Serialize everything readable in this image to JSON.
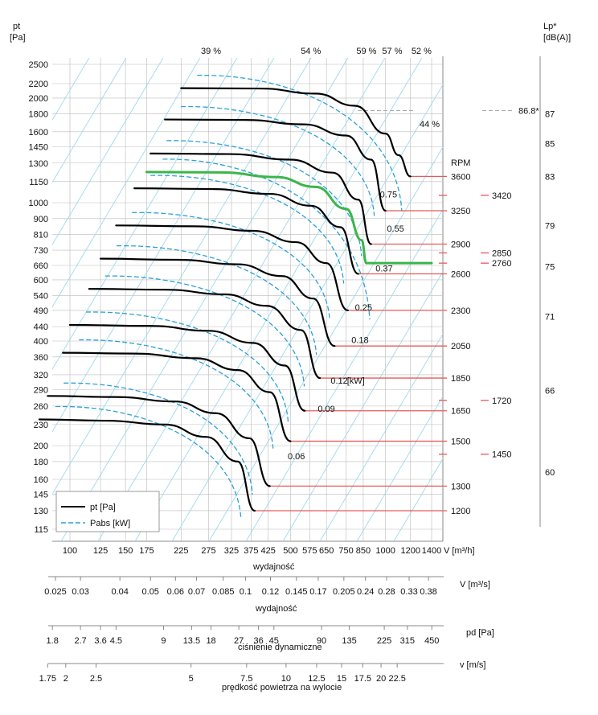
{
  "chart_data": {
    "type": "line",
    "title": "",
    "y_axis": {
      "label_line1": "pt",
      "label_line2": "[Pa]",
      "ticks": [
        115,
        130,
        145,
        160,
        180,
        200,
        230,
        260,
        290,
        320,
        360,
        400,
        440,
        490,
        540,
        600,
        660,
        730,
        810,
        900,
        1000,
        1150,
        1300,
        1450,
        1600,
        1800,
        2000,
        2200,
        2500
      ]
    },
    "x_axis": {
      "label": "wydajność",
      "unit_label": "V [m³/h]",
      "ticks": [
        100,
        125,
        150,
        175,
        225,
        275,
        325,
        375,
        425,
        500,
        575,
        650,
        750,
        850,
        1000,
        1200,
        1400
      ]
    },
    "right_axis": {
      "label_line1": "Lp*",
      "label_line2": "[dB(A)]",
      "ticks": [
        {
          "label": "87",
          "pa": 1800
        },
        {
          "label": "85",
          "pa": 1480
        },
        {
          "label": "83",
          "pa": 1190
        },
        {
          "label": "79",
          "pa": 860
        },
        {
          "label": "75",
          "pa": 655
        },
        {
          "label": "71",
          "pa": 470
        },
        {
          "label": "66",
          "pa": 288
        },
        {
          "label": "60",
          "pa": 168
        }
      ],
      "marker": {
        "label": "86.8*",
        "pa": 1840
      }
    },
    "rpm_header": "RPM",
    "rpm_main": [
      {
        "rpm": "3600",
        "pa": 1190,
        "x_end": 1200
      },
      {
        "rpm": "3250",
        "pa": 948,
        "x_end": 1000
      },
      {
        "rpm": "2900",
        "pa": 760,
        "x_end": 900
      },
      {
        "rpm": "2600",
        "pa": 624,
        "x_end": 820
      },
      {
        "rpm": "2300",
        "pa": 490,
        "x_end": 760
      },
      {
        "rpm": "2050",
        "pa": 387,
        "x_end": 690
      },
      {
        "rpm": "1850",
        "pa": 313,
        "x_end": 620
      },
      {
        "rpm": "1650",
        "pa": 252,
        "x_end": 555
      },
      {
        "rpm": "1500",
        "pa": 206,
        "x_end": 500
      },
      {
        "rpm": "1300",
        "pa": 153,
        "x_end": 430
      },
      {
        "rpm": "1200",
        "pa": 130,
        "x_end": 385
      }
    ],
    "rpm_extra": [
      {
        "rpm": "3420",
        "pa": 1050
      },
      {
        "rpm": "2850",
        "pa": 717
      },
      {
        "rpm": "2760",
        "pa": 670
      },
      {
        "rpm": "1720",
        "pa": 270
      },
      {
        "rpm": "1450",
        "pa": 189
      }
    ],
    "power_labels": [
      {
        "label": "0.75",
        "x": 960,
        "pa": 1035
      },
      {
        "label": "0.55",
        "x": 1010,
        "pa": 825
      },
      {
        "label": "0.37",
        "x": 930,
        "pa": 635
      },
      {
        "label": "0.25",
        "x": 800,
        "pa": 490
      },
      {
        "label": "0.18",
        "x": 780,
        "pa": 395
      },
      {
        "label": "0.12",
        "x": 670,
        "pa": 302
      },
      {
        "label": "[kW]",
        "x": 755,
        "pa": 302
      },
      {
        "label": "0.09",
        "x": 610,
        "pa": 250
      },
      {
        "label": "0.06",
        "x": 490,
        "pa": 183
      }
    ],
    "efficiency_labels": [
      {
        "label": "39 %",
        "x": 280,
        "pa": 2680
      },
      {
        "label": "54 %",
        "x": 580,
        "pa": 2680
      },
      {
        "label": "59 %",
        "x": 870,
        "pa": 2680
      },
      {
        "label": "57 %",
        "x": 1050,
        "pa": 2680
      },
      {
        "label": "52 %",
        "x": 1300,
        "pa": 2680
      },
      {
        "label": "44 %",
        "x": 1380,
        "pa": 1650
      }
    ],
    "series": [
      {
        "name": "3600",
        "points": [
          [
            225,
            2135
          ],
          [
            400,
            2130
          ],
          [
            600,
            2060
          ],
          [
            800,
            1900
          ],
          [
            1000,
            1580
          ],
          [
            1100,
            1370
          ],
          [
            1200,
            1190
          ]
        ]
      },
      {
        "name": "3250",
        "points": [
          [
            200,
            1735
          ],
          [
            360,
            1730
          ],
          [
            550,
            1680
          ],
          [
            750,
            1560
          ],
          [
            900,
            1330
          ],
          [
            1000,
            948
          ]
        ]
      },
      {
        "name": "2900",
        "points": [
          [
            180,
            1385
          ],
          [
            320,
            1380
          ],
          [
            500,
            1330
          ],
          [
            680,
            1220
          ],
          [
            820,
            1020
          ],
          [
            900,
            760
          ]
        ]
      },
      {
        "name": "2760",
        "highlight": true,
        "points": [
          [
            175,
            1225
          ],
          [
            300,
            1222
          ],
          [
            450,
            1185
          ],
          [
            600,
            1110
          ],
          [
            750,
            960
          ],
          [
            840,
            780
          ],
          [
            870,
            670
          ],
          [
            1400,
            670
          ]
        ]
      },
      {
        "name": "2600",
        "points": [
          [
            160,
            1100
          ],
          [
            280,
            1095
          ],
          [
            430,
            1060
          ],
          [
            580,
            980
          ],
          [
            720,
            850
          ],
          [
            820,
            624
          ]
        ]
      },
      {
        "name": "2300",
        "points": [
          [
            140,
            860
          ],
          [
            250,
            855
          ],
          [
            380,
            830
          ],
          [
            520,
            770
          ],
          [
            650,
            670
          ],
          [
            760,
            490
          ]
        ]
      },
      {
        "name": "2050",
        "points": [
          [
            125,
            690
          ],
          [
            220,
            685
          ],
          [
            340,
            665
          ],
          [
            470,
            615
          ],
          [
            590,
            530
          ],
          [
            690,
            387
          ]
        ]
      },
      {
        "name": "1850",
        "points": [
          [
            115,
            565
          ],
          [
            200,
            562
          ],
          [
            310,
            545
          ],
          [
            420,
            505
          ],
          [
            540,
            430
          ],
          [
            620,
            313
          ]
        ]
      },
      {
        "name": "1650",
        "points": [
          [
            100,
            445
          ],
          [
            180,
            442
          ],
          [
            275,
            428
          ],
          [
            380,
            395
          ],
          [
            480,
            340
          ],
          [
            555,
            252
          ]
        ]
      },
      {
        "name": "1500",
        "points": [
          [
            95,
            370
          ],
          [
            160,
            368
          ],
          [
            250,
            357
          ],
          [
            340,
            330
          ],
          [
            430,
            285
          ],
          [
            500,
            206
          ]
        ]
      },
      {
        "name": "1300",
        "points": [
          [
            85,
            278
          ],
          [
            140,
            276
          ],
          [
            215,
            268
          ],
          [
            290,
            248
          ],
          [
            370,
            210
          ],
          [
            430,
            153
          ]
        ]
      },
      {
        "name": "1200",
        "points": [
          [
            80,
            238
          ],
          [
            130,
            236
          ],
          [
            200,
            230
          ],
          [
            270,
            212
          ],
          [
            340,
            180
          ],
          [
            385,
            130
          ]
        ]
      }
    ],
    "legend": [
      {
        "label": "pt [Pa]",
        "style": "solid",
        "color": "#000000"
      },
      {
        "label": "Pabs [kW]",
        "style": "dashed",
        "color": "#2aa0d8"
      }
    ],
    "colors": {
      "curve": "#000000",
      "highlight": "#3cb54a",
      "pabs": "#2aa0d8",
      "rpm_line": "#e85a5a",
      "grid": "#bbbbbb",
      "diag": "#9fd9ea"
    },
    "bottom_scales": [
      {
        "name": "flow_m3s",
        "label": "wydajność",
        "unit_label": "V  [m³/s]",
        "ticks": [
          "0.025",
          "0.03",
          "0.04",
          "0.05",
          "0.06",
          "0.07",
          "0.085",
          "0.1",
          "0.12",
          "0.145",
          "0.17",
          "0.205",
          "0.24",
          "0.28",
          "0.33",
          "0.38"
        ],
        "values": [
          90,
          108,
          144,
          180,
          216,
          252,
          306,
          360,
          432,
          522,
          612,
          738,
          864,
          1008,
          1188,
          1368
        ]
      },
      {
        "name": "dynamic_pressure",
        "label": "ciśnienie dynamiczne",
        "unit_label": "pd  [Pa]",
        "ticks": [
          "1.8",
          "2.7",
          "3.6",
          "4.5",
          "9",
          "13.5",
          "18",
          "27",
          "36",
          "45",
          "90",
          "135",
          "225",
          "315",
          "450"
        ],
        "values": [
          88,
          108,
          125,
          140,
          198,
          243,
          280,
          343,
          396,
          443,
          627,
          768,
          991,
          1173,
          1402
        ]
      },
      {
        "name": "air_velocity",
        "label": "prędkość powietrza na wylocie",
        "unit_label": "v  [m/s]",
        "ticks": [
          "1.75",
          "2",
          "2.5",
          "5",
          "7.5",
          "10",
          "12.5",
          "15",
          "17.5",
          "20",
          "22.5"
        ],
        "values": [
          85,
          97,
          121,
          242,
          363,
          484,
          605,
          726,
          847,
          968,
          1089
        ]
      }
    ]
  }
}
